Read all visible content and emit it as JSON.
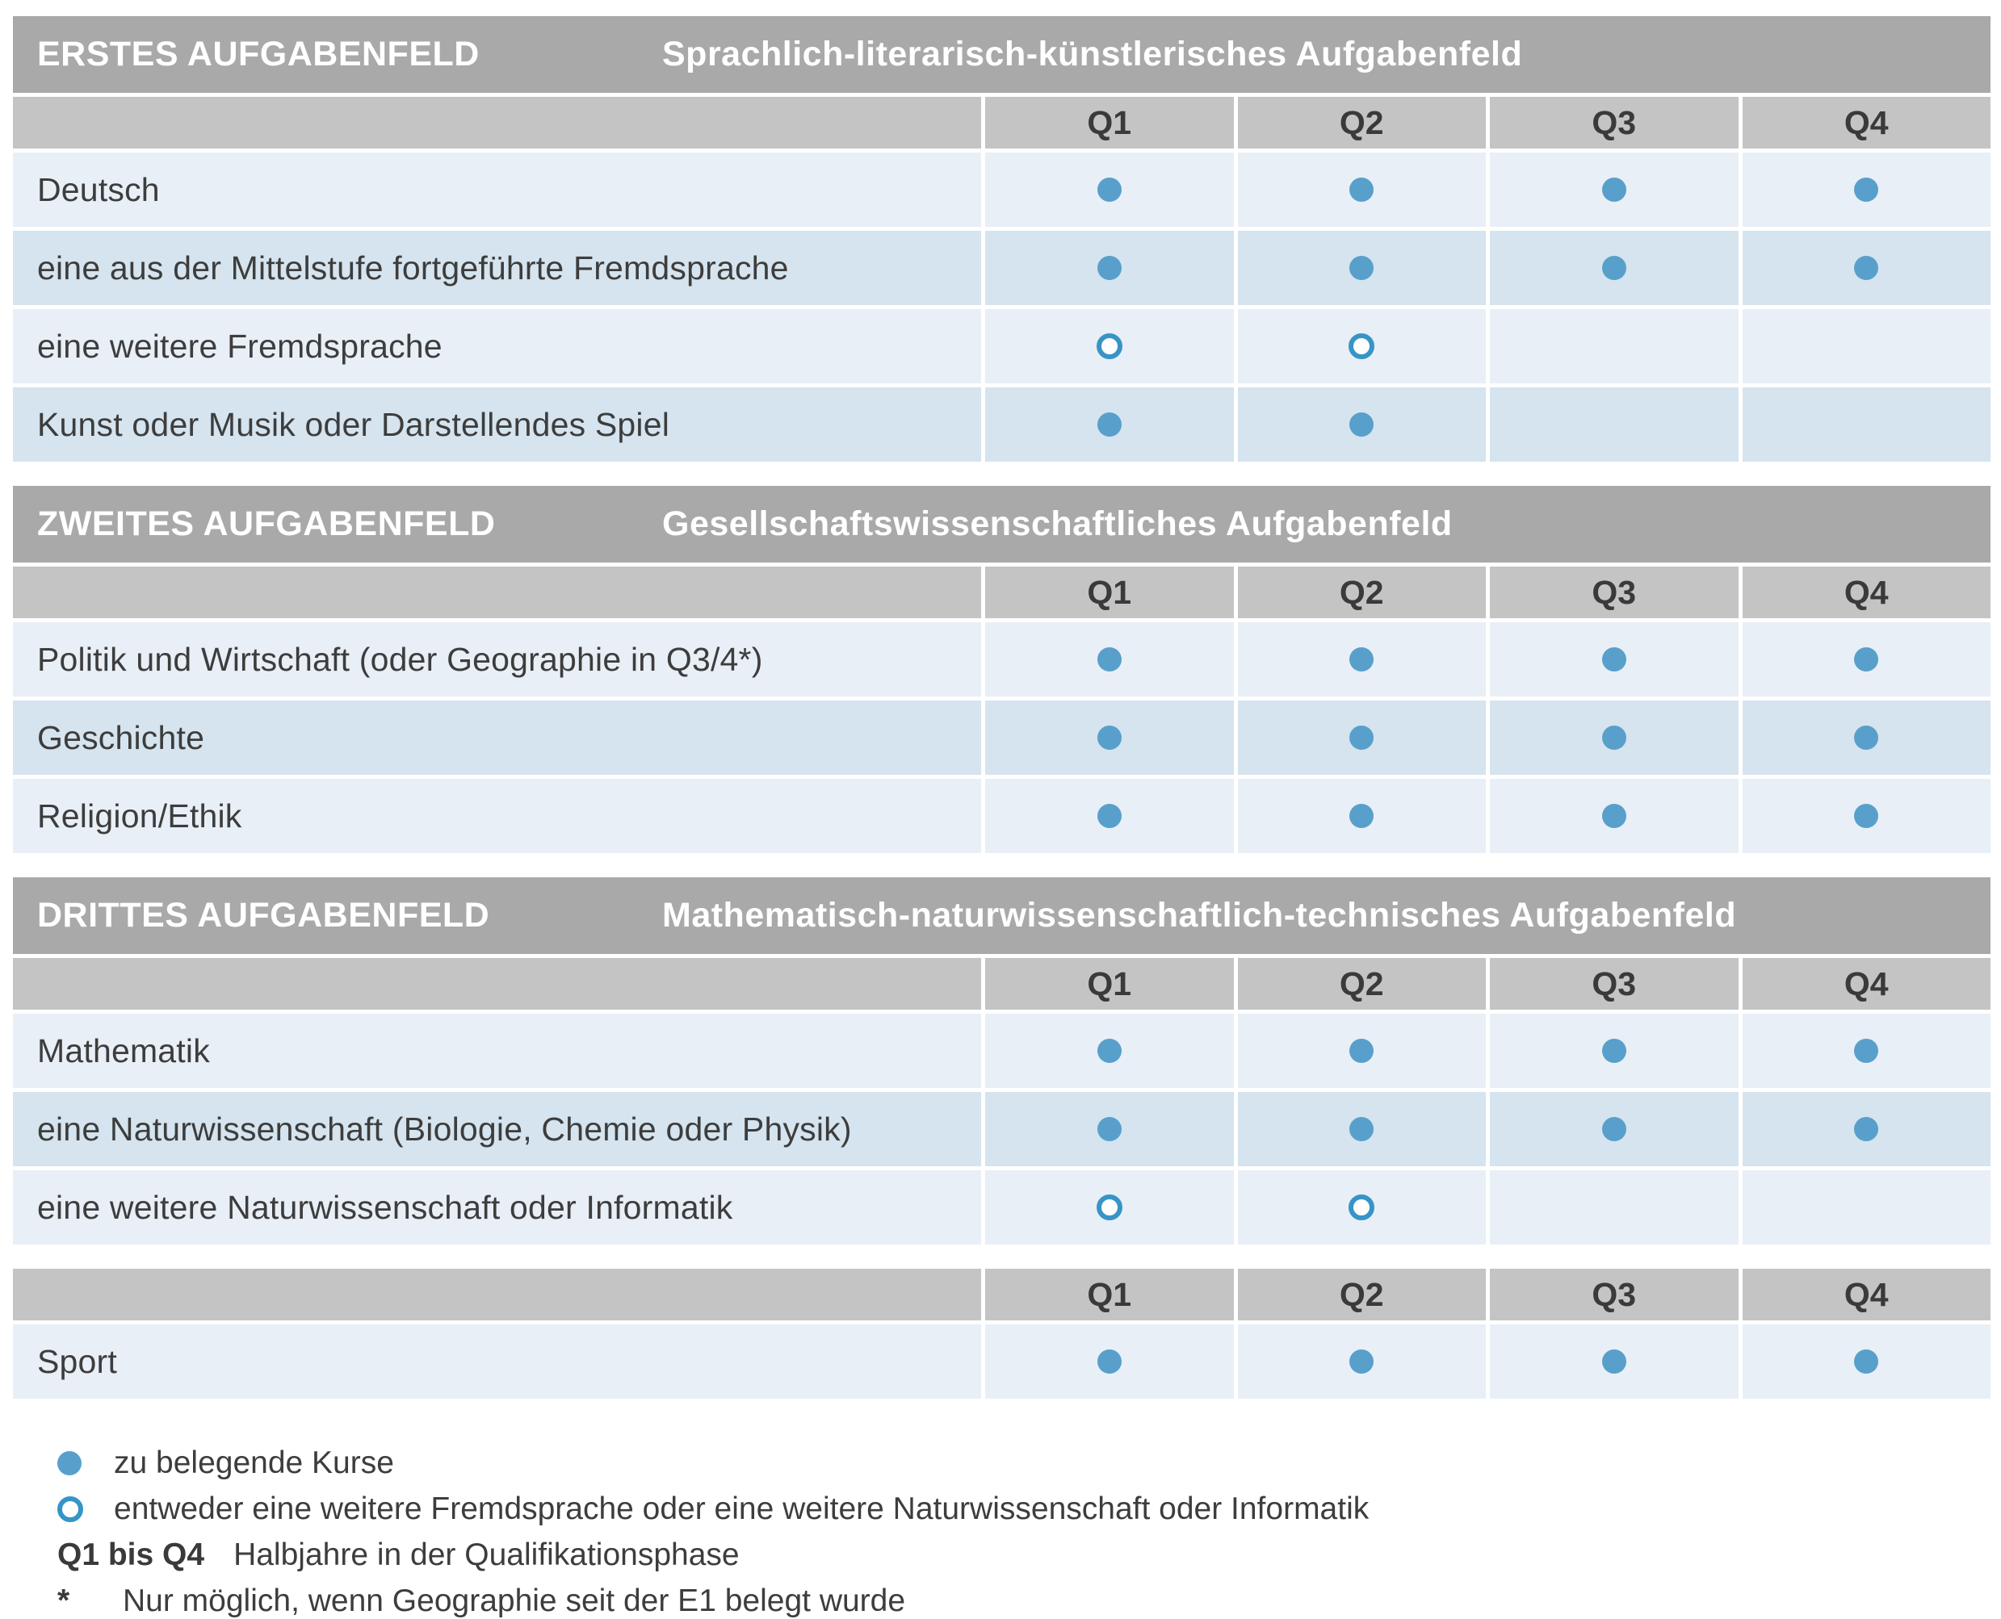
{
  "colors": {
    "section_bar": "#a9a9a9",
    "column_header": "#c4c4c4",
    "row_light": "#e8eff6",
    "row_dark": "#d5e4ee",
    "dot_filled": "#58a0cb",
    "dot_open_ring": "#3794c6",
    "header_text": "#ffffff",
    "body_text": "#3d3d3d"
  },
  "sections": [
    {
      "title": "ERSTES AUFGABENFELD",
      "subtitle": "Sprachlich-literarisch-künstlerisches Aufgabenfeld",
      "columns": [
        "Q1",
        "Q2",
        "Q3",
        "Q4"
      ],
      "rows": [
        {
          "label": "Deutsch",
          "marks": [
            "filled",
            "filled",
            "filled",
            "filled"
          ]
        },
        {
          "label": "eine aus der Mittelstufe fortgeführte Fremdsprache",
          "marks": [
            "filled",
            "filled",
            "filled",
            "filled"
          ]
        },
        {
          "label": "eine weitere Fremdsprache",
          "marks": [
            "open",
            "open",
            "none",
            "none"
          ]
        },
        {
          "label": "Kunst oder Musik oder Darstellendes Spiel",
          "marks": [
            "filled",
            "filled",
            "none",
            "none"
          ]
        }
      ]
    },
    {
      "title": "ZWEITES AUFGABENFELD",
      "subtitle": "Gesellschaftswissenschaftliches Aufgabenfeld",
      "columns": [
        "Q1",
        "Q2",
        "Q3",
        "Q4"
      ],
      "rows": [
        {
          "label": "Politik und Wirtschaft  (oder Geographie in Q3/4*)",
          "marks": [
            "filled",
            "filled",
            "filled",
            "filled"
          ]
        },
        {
          "label": "Geschichte",
          "marks": [
            "filled",
            "filled",
            "filled",
            "filled"
          ]
        },
        {
          "label": "Religion/Ethik",
          "marks": [
            "filled",
            "filled",
            "filled",
            "filled"
          ]
        }
      ]
    },
    {
      "title": "DRITTES AUFGABENFELD",
      "subtitle": "Mathematisch-naturwissenschaftlich-technisches Aufgabenfeld",
      "columns": [
        "Q1",
        "Q2",
        "Q3",
        "Q4"
      ],
      "rows": [
        {
          "label": "Mathematik",
          "marks": [
            "filled",
            "filled",
            "filled",
            "filled"
          ]
        },
        {
          "label": "eine Naturwissenschaft (Biologie, Chemie oder Physik)",
          "marks": [
            "filled",
            "filled",
            "filled",
            "filled"
          ]
        },
        {
          "label": "eine weitere Naturwissenschaft oder Informatik",
          "marks": [
            "open",
            "open",
            "none",
            "none"
          ]
        }
      ]
    },
    {
      "title": null,
      "subtitle": null,
      "columns": [
        "Q1",
        "Q2",
        "Q3",
        "Q4"
      ],
      "rows": [
        {
          "label": "Sport",
          "marks": [
            "filled",
            "filled",
            "filled",
            "filled"
          ]
        }
      ]
    }
  ],
  "legend": {
    "items": [
      {
        "marker": "filled",
        "term": null,
        "text": "zu belegende Kurse"
      },
      {
        "marker": "open",
        "term": null,
        "text": "entweder eine weitere Fremdsprache oder eine weitere Naturwissenschaft oder Informatik"
      },
      {
        "marker": null,
        "term": "Q1 bis Q4",
        "text": "Halbjahre in der Qualifikationsphase"
      },
      {
        "marker": null,
        "term": "*",
        "text": "Nur möglich, wenn Geographie seit der E1 belegt wurde"
      }
    ]
  }
}
